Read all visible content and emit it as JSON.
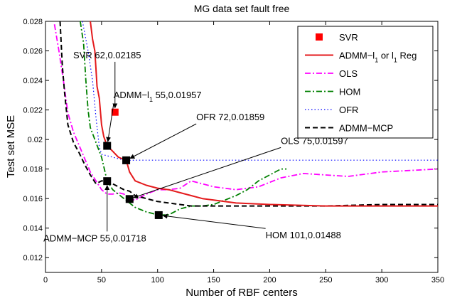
{
  "chart_data": {
    "type": "line",
    "title": "MG data set fault free",
    "xlabel": "Number of RBF centers",
    "ylabel": "Test set MSE",
    "xlim": [
      0,
      350
    ],
    "ylim": [
      0.011,
      0.028
    ],
    "xticks": [
      "0",
      "50",
      "100",
      "150",
      "200",
      "250",
      "300",
      "350"
    ],
    "xtick_values": [
      0,
      50,
      100,
      150,
      200,
      250,
      300,
      350
    ],
    "yticks": [
      "0.012",
      "0.014",
      "0.016",
      "0.018",
      "0.02",
      "0.022",
      "0.024",
      "0.026",
      "0.028"
    ],
    "ytick_values": [
      0.012,
      0.014,
      0.016,
      0.018,
      0.02,
      0.022,
      0.024,
      0.026,
      0.028
    ],
    "grid": false,
    "legend_position": "top-right",
    "series": [
      {
        "name": "SVR",
        "style": "marker",
        "color": "#ff0000",
        "x": [
          62
        ],
        "y": [
          0.02185
        ]
      },
      {
        "name": "ADMM−l",
        "name_sub": "1",
        "name_mid": " or l",
        "name_sub2": "1",
        "name_tail": " Reg",
        "style": "solid",
        "color": "#e41a1c",
        "x": [
          40,
          42,
          44,
          45,
          46,
          48,
          50,
          52,
          55,
          60,
          65,
          72,
          75,
          80,
          90,
          100,
          110,
          120,
          130,
          140,
          150,
          170,
          200,
          250,
          300,
          350
        ],
        "y": [
          0.028,
          0.0268,
          0.026,
          0.0248,
          0.0236,
          0.0228,
          0.021,
          0.0202,
          0.01957,
          0.0192,
          0.0188,
          0.01859,
          0.0178,
          0.0172,
          0.0169,
          0.0167,
          0.0166,
          0.0164,
          0.0162,
          0.016,
          0.0159,
          0.0157,
          0.0156,
          0.0155,
          0.0155,
          0.0155
        ]
      },
      {
        "name": "OLS",
        "style": "dashdot",
        "color": "#ff00ff",
        "x": [
          8,
          12,
          16,
          20,
          25,
          30,
          35,
          40,
          45,
          50,
          55,
          60,
          65,
          70,
          75,
          80,
          90,
          100,
          110,
          120,
          130,
          150,
          170,
          190,
          210,
          230,
          250,
          270,
          300,
          350
        ],
        "y": [
          0.0278,
          0.026,
          0.024,
          0.0218,
          0.0205,
          0.0196,
          0.0187,
          0.0178,
          0.0172,
          0.0166,
          0.0163,
          0.0163,
          0.0164,
          0.0163,
          0.01597,
          0.0159,
          0.0163,
          0.0166,
          0.0166,
          0.0167,
          0.0172,
          0.0168,
          0.0166,
          0.0168,
          0.0174,
          0.0177,
          0.0176,
          0.0175,
          0.0178,
          0.018
        ]
      },
      {
        "name": "HOM",
        "style": "dashdot",
        "color": "#008000",
        "x": [
          31,
          34,
          36,
          38,
          40,
          45,
          50,
          55,
          60,
          70,
          80,
          90,
          95,
          101,
          110,
          120,
          130,
          140,
          150,
          160,
          170,
          180,
          190,
          200,
          210,
          215
        ],
        "y": [
          0.028,
          0.0265,
          0.024,
          0.022,
          0.0208,
          0.0198,
          0.0188,
          0.0172,
          0.0166,
          0.016,
          0.0154,
          0.0151,
          0.015,
          0.01488,
          0.0149,
          0.0153,
          0.0155,
          0.0155,
          0.0156,
          0.0159,
          0.0162,
          0.0166,
          0.0172,
          0.0176,
          0.018,
          0.018
        ]
      },
      {
        "name": "OFR",
        "style": "dotted",
        "color": "#0000ff",
        "x": [
          33,
          38,
          42,
          45,
          48,
          50,
          55,
          60,
          65,
          72,
          80,
          100,
          150,
          200,
          250,
          300,
          350
        ],
        "y": [
          0.028,
          0.026,
          0.024,
          0.0215,
          0.0195,
          0.019,
          0.0189,
          0.0188,
          0.0187,
          0.01859,
          0.0186,
          0.0186,
          0.0186,
          0.0186,
          0.0186,
          0.0186,
          0.0186
        ]
      },
      {
        "name": "ADMM−MCP",
        "style": "dashed",
        "color": "#000000",
        "x": [
          13,
          15,
          17,
          20,
          25,
          30,
          35,
          40,
          45,
          50,
          55,
          60,
          65,
          70,
          75,
          80,
          90,
          100,
          110,
          120,
          130,
          150,
          200,
          250,
          300,
          350
        ],
        "y": [
          0.028,
          0.025,
          0.0232,
          0.021,
          0.0198,
          0.0191,
          0.0183,
          0.0176,
          0.017,
          0.0172,
          0.01718,
          0.017,
          0.0168,
          0.0166,
          0.0165,
          0.0162,
          0.016,
          0.0158,
          0.0157,
          0.0156,
          0.0155,
          0.0155,
          0.0155,
          0.0155,
          0.0156,
          0.0156
        ]
      }
    ],
    "highlight_points": [
      {
        "x": 55,
        "y": 0.01957
      },
      {
        "x": 72,
        "y": 0.01859
      },
      {
        "x": 75,
        "y": 0.01597
      },
      {
        "x": 55,
        "y": 0.01718
      },
      {
        "x": 101,
        "y": 0.01488
      }
    ],
    "annotations": [
      {
        "text": "SVR 62,0.02185",
        "target": [
          62,
          0.02185
        ],
        "label_at": [
          55,
          0.0255
        ],
        "anchor": "middle"
      },
      {
        "text": "ADMM−l",
        "sub": "1",
        "tail": " 55,0.01957",
        "target": [
          55,
          0.01957
        ],
        "label_at": [
          100,
          0.0228
        ],
        "anchor": "middle"
      },
      {
        "text": "OFR 72,0.01859",
        "target": [
          72,
          0.01859
        ],
        "label_at": [
          165,
          0.0213
        ],
        "anchor": "middle"
      },
      {
        "text": "OLS 75,0.01597",
        "target": [
          75,
          0.01597
        ],
        "label_at": [
          240,
          0.0197
        ],
        "anchor": "middle"
      },
      {
        "text": "ADMM−MCP 55,0.01718",
        "target": [
          55,
          0.01718
        ],
        "label_at": [
          44,
          0.0131
        ],
        "anchor": "middle"
      },
      {
        "text": "HOM 101,0.01488",
        "target": [
          101,
          0.01488
        ],
        "label_at": [
          230,
          0.0133
        ],
        "anchor": "middle"
      }
    ]
  }
}
